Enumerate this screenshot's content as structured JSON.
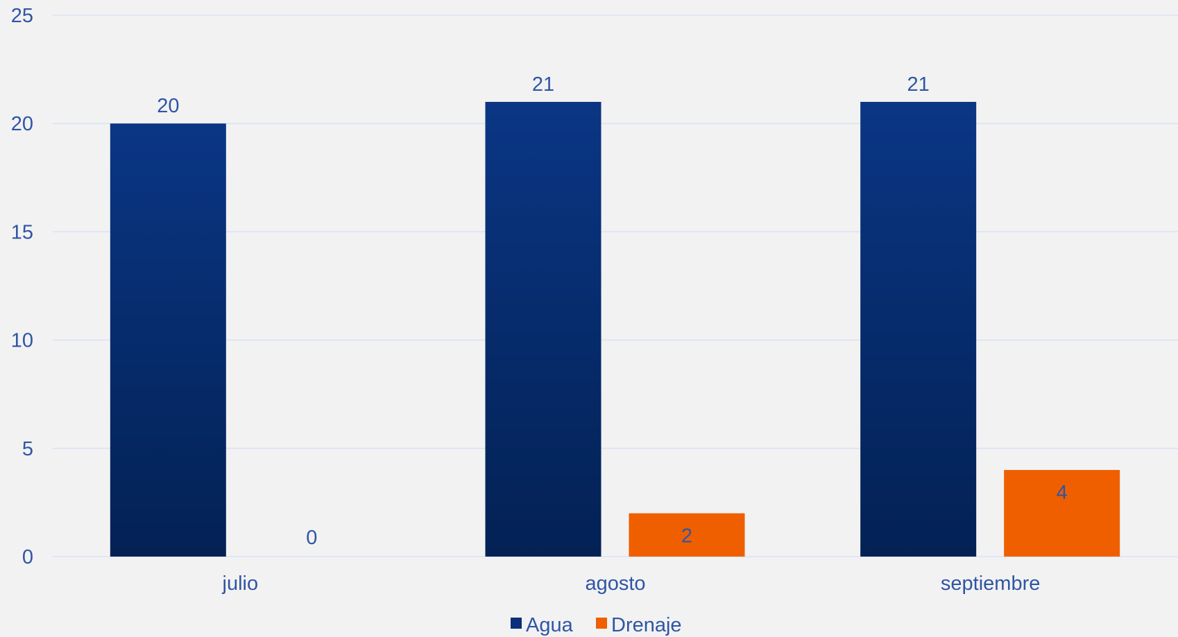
{
  "chart_data": {
    "type": "bar",
    "categories": [
      "julio",
      "agosto",
      "septiembre"
    ],
    "series": [
      {
        "name": "Agua",
        "values": [
          20,
          21,
          21
        ],
        "color": "#0b2f78"
      },
      {
        "name": "Drenaje",
        "values": [
          0,
          2,
          4
        ],
        "color": "#ef5f00"
      }
    ],
    "ylim": [
      0,
      25
    ],
    "yticks": [
      "0",
      "5",
      "10",
      "15",
      "20",
      "25"
    ],
    "grid": true,
    "legend": "bottom",
    "data_labels": true,
    "title": "",
    "xlabel": "",
    "ylabel": ""
  },
  "colors": {
    "background": "#f2f2f2",
    "gridline": "#d9e1f2",
    "text": "#2f55a4"
  }
}
